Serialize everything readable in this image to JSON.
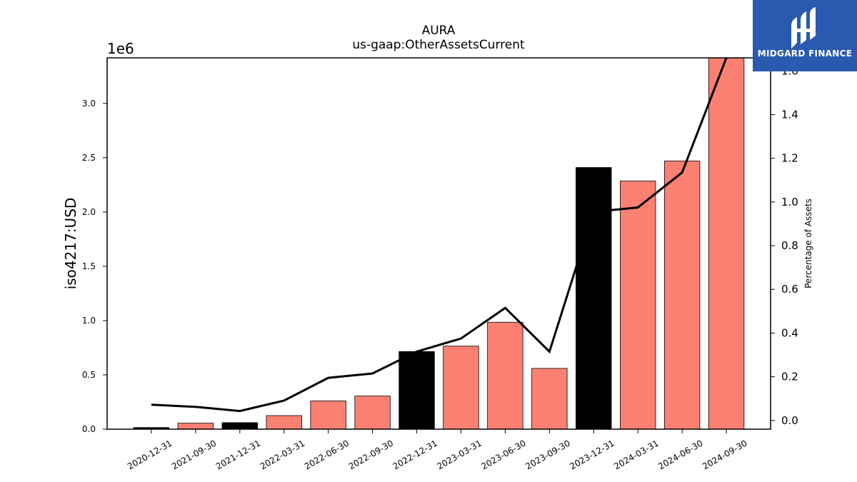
{
  "chart_data": {
    "type": "bar",
    "title": "AURA",
    "subtitle": "us-gaap:OtherAssetsCurrent",
    "ylabel": "iso4217:USD",
    "y_offset_label": "1e6",
    "y2label": "Percentage of Assets",
    "categories": [
      "2020-12-31",
      "2021-09-30",
      "2021-12-31",
      "2022-03-31",
      "2022-06-30",
      "2022-09-30",
      "2022-12-31",
      "2023-03-31",
      "2023-06-30",
      "2023-09-30",
      "2023-12-31",
      "2024-03-31",
      "2024-06-30",
      "2024-09-30"
    ],
    "values": [
      15000,
      55000,
      60000,
      125000,
      260000,
      305000,
      715000,
      765000,
      985000,
      560000,
      2410000,
      2285000,
      2470000,
      3420000
    ],
    "bar_colors": [
      "#000000",
      "#fa8072",
      "#000000",
      "#fa8072",
      "#fa8072",
      "#fa8072",
      "#000000",
      "#fa8072",
      "#fa8072",
      "#fa8072",
      "#000000",
      "#fa8072",
      "#fa8072",
      "#fa8072"
    ],
    "yticks": [
      "0.0",
      "0.5",
      "1.0",
      "1.5",
      "2.0",
      "2.5",
      "3.0"
    ],
    "ylim": [
      0,
      3420000
    ],
    "percent_series": [
      0.072,
      0.062,
      0.043,
      0.091,
      0.195,
      0.215,
      0.315,
      0.375,
      0.515,
      0.315,
      0.955,
      0.975,
      1.135,
      1.66
    ],
    "y2ticks": [
      "0.0",
      "0.2",
      "0.4",
      "0.6",
      "0.8",
      "1.0",
      "1.2",
      "1.4",
      "1.6"
    ],
    "y2lim": [
      -0.04,
      1.66
    ],
    "grid": false,
    "legend": "none"
  },
  "logo": {
    "text": "MIDGARD FINANCE",
    "bg": "#2a5ab0"
  }
}
